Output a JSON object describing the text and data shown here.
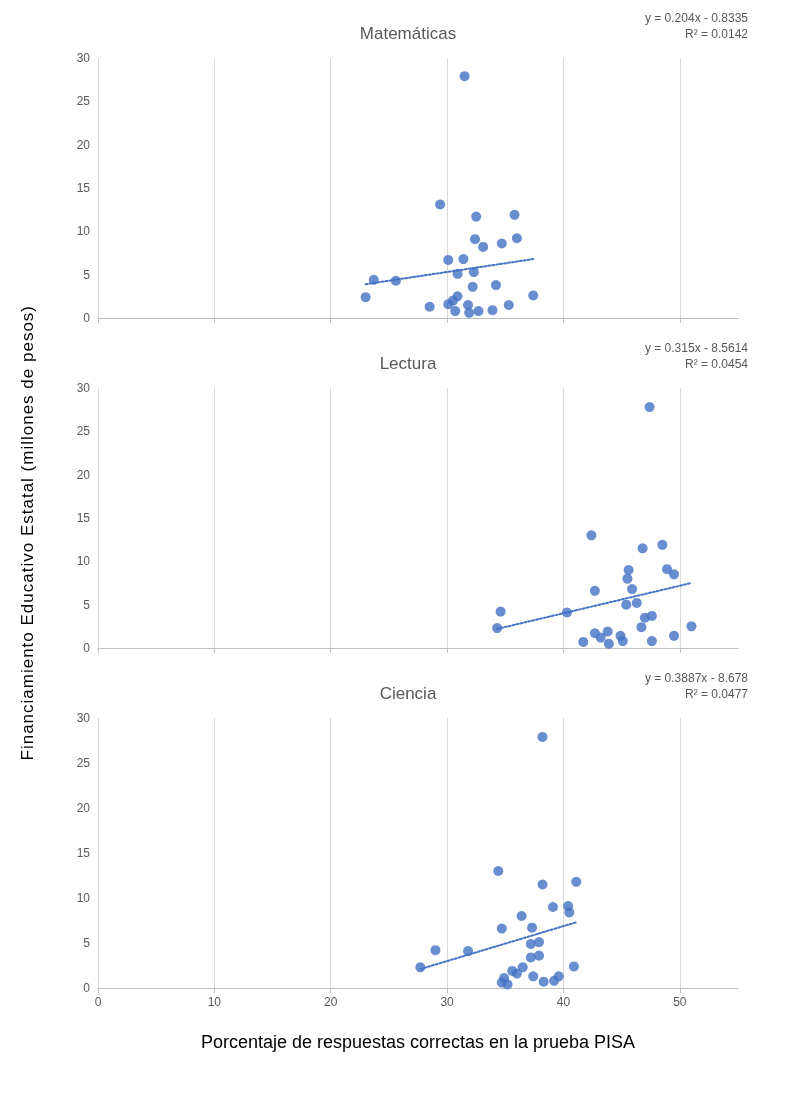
{
  "chart_data": [
    {
      "type": "scatter",
      "title": "Matemáticas",
      "annotations": [
        "y = 0.204x - 0.8335",
        "R² = 0.0142"
      ],
      "xlim": [
        0,
        55
      ],
      "xticks": [
        0,
        10,
        20,
        30,
        40,
        50
      ],
      "ylim": [
        0,
        30
      ],
      "yticks": [
        0,
        5,
        10,
        15,
        20,
        25,
        30
      ],
      "grid": "x",
      "tick_labels": "y",
      "series": [
        {
          "marker": "circle",
          "color": "#4472c4",
          "x": [
            31.5,
            29.4,
            32.5,
            35.8,
            32.4,
            36.0,
            33.1,
            34.7,
            30.1,
            31.4,
            30.9,
            32.3,
            23.7,
            25.6,
            32.2,
            34.2,
            23.0,
            30.9,
            37.4,
            28.5,
            30.1,
            30.5,
            30.7,
            31.8,
            31.9,
            32.7,
            33.9,
            35.3
          ],
          "values": [
            27.9,
            13.1,
            11.7,
            11.9,
            9.1,
            9.2,
            8.2,
            8.6,
            6.7,
            6.8,
            5.1,
            5.3,
            4.4,
            4.3,
            3.6,
            3.8,
            2.4,
            2.5,
            2.6,
            1.3,
            1.6,
            2.0,
            0.8,
            1.5,
            0.6,
            0.8,
            0.9,
            1.5
          ]
        },
        {
          "type": "line",
          "color": "#4472c4",
          "line_style": "dotted",
          "x": [
            23.0,
            37.4
          ],
          "values": [
            3.9,
            6.8
          ]
        }
      ]
    },
    {
      "type": "scatter",
      "title": "Lectura",
      "ylabel": "Financiamiento Educativo Estatal (millones de pesos)",
      "annotations": [
        "y = 0.315x - 8.5614",
        "R² = 0.0454"
      ],
      "xlim": [
        0,
        55
      ],
      "xticks": [
        0,
        10,
        20,
        30,
        40,
        50
      ],
      "ylim": [
        0,
        30
      ],
      "yticks": [
        0,
        5,
        10,
        15,
        20,
        25,
        30
      ],
      "grid": "x",
      "tick_labels": "y",
      "series": [
        {
          "marker": "circle",
          "color": "#4472c4",
          "x": [
            47.4,
            42.4,
            46.8,
            48.5,
            45.6,
            45.5,
            48.9,
            49.5,
            42.7,
            45.9,
            45.4,
            46.3,
            34.6,
            40.3,
            47.0,
            47.6,
            34.3,
            46.7,
            51.0,
            42.7,
            43.2,
            43.8,
            41.7,
            43.9,
            44.9,
            45.1,
            47.6,
            49.5
          ],
          "values": [
            27.8,
            13.0,
            11.5,
            11.9,
            9.0,
            8.0,
            9.1,
            8.5,
            6.6,
            6.8,
            5.0,
            5.2,
            4.2,
            4.1,
            3.5,
            3.7,
            2.3,
            2.4,
            2.5,
            1.7,
            1.2,
            1.9,
            0.7,
            0.5,
            1.4,
            0.8,
            0.8,
            1.4
          ]
        },
        {
          "type": "line",
          "color": "#4472c4",
          "line_style": "dotted",
          "x": [
            34.3,
            51.0
          ],
          "values": [
            2.2,
            7.5
          ]
        }
      ]
    },
    {
      "type": "scatter",
      "title": "Ciencia",
      "xlabel": "Porcentaje de respuestas correctas en la prueba PISA",
      "annotations": [
        "y = 0.3887x - 8.678",
        "R² = 0.0477"
      ],
      "xlim": [
        0,
        55
      ],
      "xticks": [
        0,
        10,
        20,
        30,
        40,
        50
      ],
      "ylim": [
        0,
        30
      ],
      "yticks": [
        0,
        5,
        10,
        15,
        20,
        25,
        30
      ],
      "grid": "x",
      "series": [
        {
          "marker": "circle",
          "color": "#4472c4",
          "x": [
            38.2,
            34.4,
            38.2,
            41.1,
            39.1,
            40.4,
            40.5,
            36.4,
            34.7,
            37.3,
            37.2,
            37.9,
            29.0,
            31.8,
            37.2,
            37.9,
            27.7,
            36.5,
            40.9,
            35.6,
            36.0,
            37.4,
            34.9,
            34.7,
            35.2,
            38.3,
            39.2,
            39.6
          ],
          "values": [
            27.9,
            13.0,
            11.5,
            11.8,
            9.0,
            9.1,
            8.4,
            8.0,
            6.6,
            6.7,
            4.9,
            5.1,
            4.2,
            4.1,
            3.4,
            3.6,
            2.3,
            2.3,
            2.4,
            1.9,
            1.6,
            1.3,
            1.1,
            0.6,
            0.4,
            0.7,
            0.8,
            1.3
          ]
        },
        {
          "type": "line",
          "color": "#4472c4",
          "line_style": "dotted",
          "x": [
            27.7,
            41.1
          ],
          "values": [
            2.1,
            7.3
          ]
        }
      ]
    }
  ]
}
